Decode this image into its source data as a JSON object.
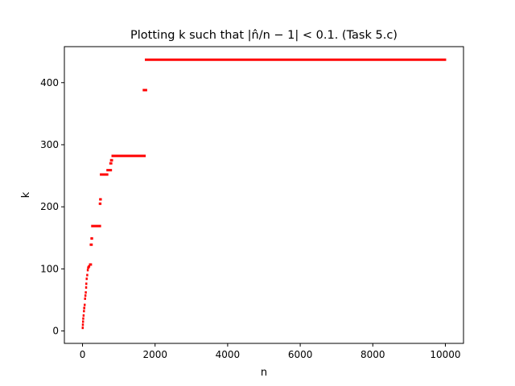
{
  "chart_data": {
    "type": "scatter",
    "title": "Plotting k such that |n̂/n − 1| < 0.1. (Task 5.c)",
    "xlabel": "n",
    "ylabel": "k",
    "xlim": [
      -500,
      10500
    ],
    "ylim": [
      -20,
      458
    ],
    "xticks": [
      0,
      2000,
      4000,
      6000,
      8000,
      10000
    ],
    "xtick_labels": [
      "0",
      "2000",
      "4000",
      "6000",
      "8000",
      "10000"
    ],
    "yticks": [
      0,
      100,
      200,
      300,
      400
    ],
    "ytick_labels": [
      "0",
      "100",
      "200",
      "300",
      "400"
    ],
    "grid": false,
    "marker_color": "#ff0000",
    "segments": [
      {
        "x_start": 0,
        "x_end": 10,
        "y": 5
      },
      {
        "x_start": 5,
        "x_end": 15,
        "y": 10
      },
      {
        "x_start": 10,
        "x_end": 20,
        "y": 15
      },
      {
        "x_start": 15,
        "x_end": 25,
        "y": 20
      },
      {
        "x_start": 25,
        "x_end": 35,
        "y": 25
      },
      {
        "x_start": 35,
        "x_end": 45,
        "y": 32
      },
      {
        "x_start": 40,
        "x_end": 55,
        "y": 37
      },
      {
        "x_start": 55,
        "x_end": 65,
        "y": 42
      },
      {
        "x_start": 65,
        "x_end": 75,
        "y": 52
      },
      {
        "x_start": 75,
        "x_end": 85,
        "y": 57
      },
      {
        "x_start": 85,
        "x_end": 95,
        "y": 62
      },
      {
        "x_start": 95,
        "x_end": 105,
        "y": 70
      },
      {
        "x_start": 100,
        "x_end": 110,
        "y": 76
      },
      {
        "x_start": 110,
        "x_end": 120,
        "y": 84
      },
      {
        "x_start": 125,
        "x_end": 135,
        "y": 90
      },
      {
        "x_start": 140,
        "x_end": 150,
        "y": 98
      },
      {
        "x_start": 150,
        "x_end": 170,
        "y": 102
      },
      {
        "x_start": 170,
        "x_end": 190,
        "y": 104
      },
      {
        "x_start": 200,
        "x_end": 240,
        "y": 107
      },
      {
        "x_start": 220,
        "x_end": 260,
        "y": 139
      },
      {
        "x_start": 240,
        "x_end": 270,
        "y": 149
      },
      {
        "x_start": 260,
        "x_end": 490,
        "y": 169
      },
      {
        "x_start": 470,
        "x_end": 500,
        "y": 205
      },
      {
        "x_start": 480,
        "x_end": 510,
        "y": 212
      },
      {
        "x_start": 500,
        "x_end": 690,
        "y": 252
      },
      {
        "x_start": 680,
        "x_end": 790,
        "y": 259
      },
      {
        "x_start": 760,
        "x_end": 800,
        "y": 270
      },
      {
        "x_start": 780,
        "x_end": 820,
        "y": 275
      },
      {
        "x_start": 820,
        "x_end": 1720,
        "y": 282
      },
      {
        "x_start": 1680,
        "x_end": 1760,
        "y": 388
      },
      {
        "x_start": 1740,
        "x_end": 10000,
        "y": 437
      }
    ]
  }
}
